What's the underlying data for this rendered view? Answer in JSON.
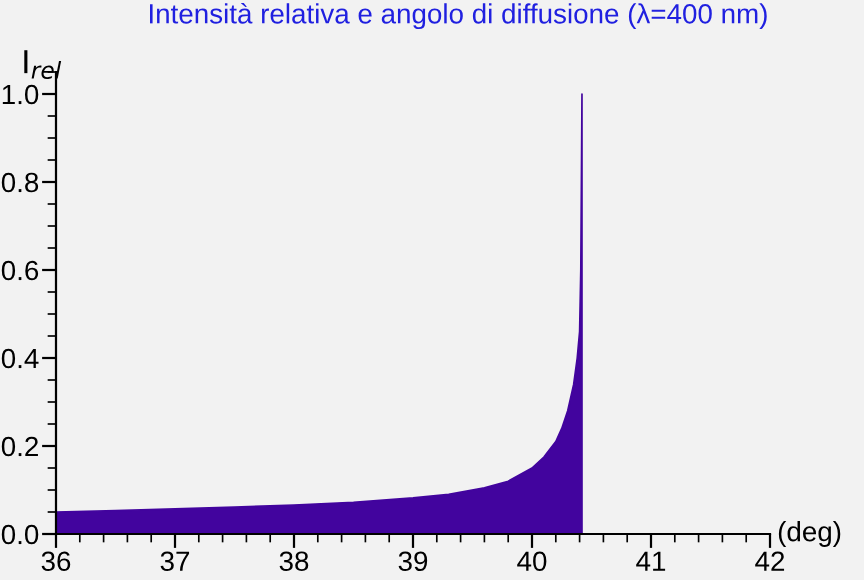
{
  "chart_data": {
    "type": "area",
    "title": "Intensità relativa e angolo di diffusione (λ=400 nm)",
    "xlabel": "(deg)",
    "ylabel": "I$_{rel}$",
    "x": [
      36,
      36.5,
      37,
      37.5,
      38,
      38.5,
      39,
      39.3,
      39.6,
      39.8,
      40,
      40.1,
      40.2,
      40.25,
      40.3,
      40.35,
      40.38,
      40.4,
      40.41,
      40.415,
      40.42
    ],
    "series": [
      {
        "color": "#42049e",
        "values": [
          0.05,
          0.053,
          0.057,
          0.061,
          0.066,
          0.072,
          0.082,
          0.09,
          0.105,
          0.12,
          0.15,
          0.175,
          0.21,
          0.24,
          0.28,
          0.34,
          0.4,
          0.46,
          0.6,
          0.8,
          1.0
        ]
      }
    ],
    "xlim": [
      36,
      42
    ],
    "xticks": [
      36,
      37,
      38,
      39,
      40,
      41,
      42
    ],
    "ylim": [
      0,
      1.05
    ],
    "yticks": [
      {
        "value": 0,
        "label": "0.0"
      },
      0.2,
      0.4,
      0.6,
      0.8,
      {
        "value": 1,
        "label": "1.0"
      }
    ],
    "grid": false,
    "legend": false
  }
}
